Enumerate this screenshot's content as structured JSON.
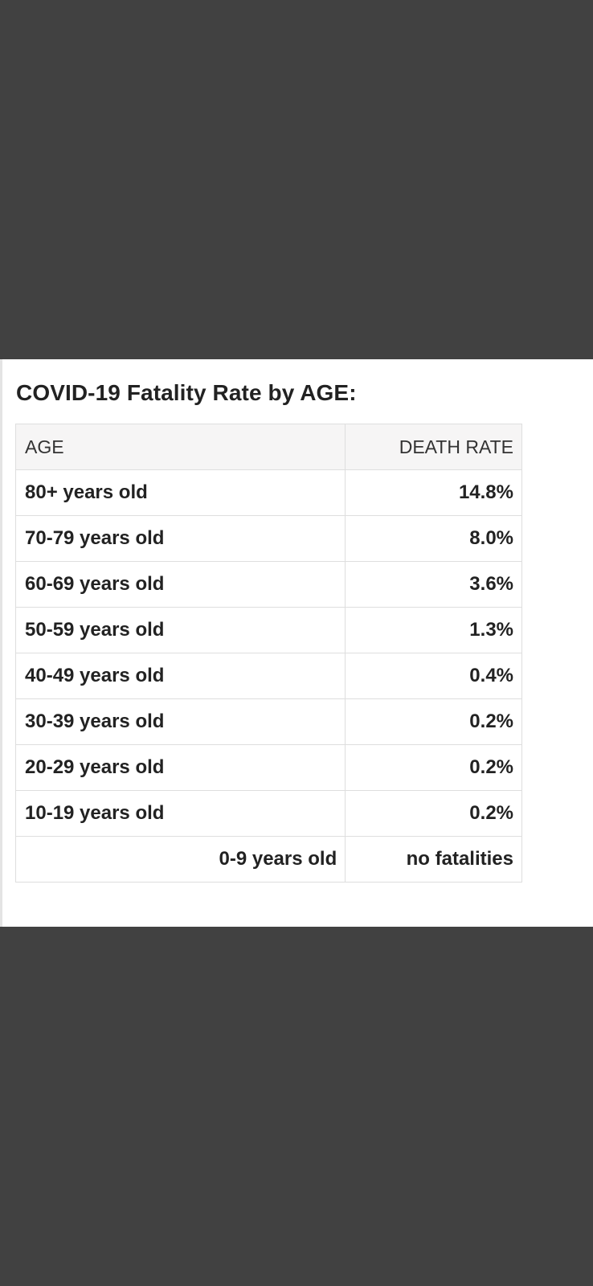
{
  "title": "COVID-19 Fatality Rate by AGE:",
  "table": {
    "headers": [
      "AGE",
      "DEATH RATE"
    ],
    "rows": [
      {
        "age": "80+ years old",
        "rate": "14.8%"
      },
      {
        "age": "70-79 years old",
        "rate": "8.0%"
      },
      {
        "age": "60-69 years old",
        "rate": "3.6%"
      },
      {
        "age": "50-59 years old",
        "rate": "1.3%"
      },
      {
        "age": "40-49 years old",
        "rate": "0.4%"
      },
      {
        "age": "30-39 years old",
        "rate": "0.2%"
      },
      {
        "age": "20-29 years old",
        "rate": "0.2%"
      },
      {
        "age": "10-19 years old",
        "rate": "0.2%"
      },
      {
        "age": "0-9 years old",
        "rate": "no fatalities"
      }
    ]
  },
  "colors": {
    "background": "#414141",
    "panel": "#ffffff",
    "header_bg": "#f6f5f5",
    "border": "#dedede",
    "text": "#222222"
  }
}
